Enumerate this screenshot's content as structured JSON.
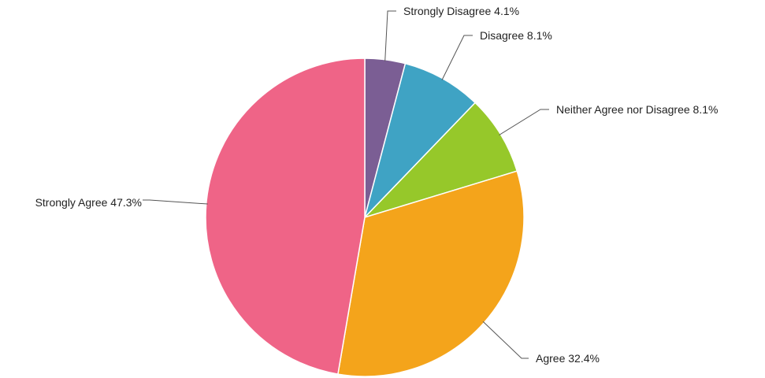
{
  "chart_data": {
    "type": "pie",
    "start_angle_deg": 0,
    "direction": "clockwise",
    "slices": [
      {
        "label": "Strongly Disagree 4.1%",
        "value": 4.1,
        "color": "#7b5e94"
      },
      {
        "label": "Disagree 8.1%",
        "value": 8.1,
        "color": "#3fa3c4"
      },
      {
        "label": "Neither Agree nor Disagree 8.1%",
        "value": 8.1,
        "color": "#96c82a"
      },
      {
        "label": "Agree 32.4%",
        "value": 32.4,
        "color": "#f4a41b"
      },
      {
        "label": "Strongly Agree 47.3%",
        "value": 47.3,
        "color": "#ef6487"
      }
    ]
  }
}
